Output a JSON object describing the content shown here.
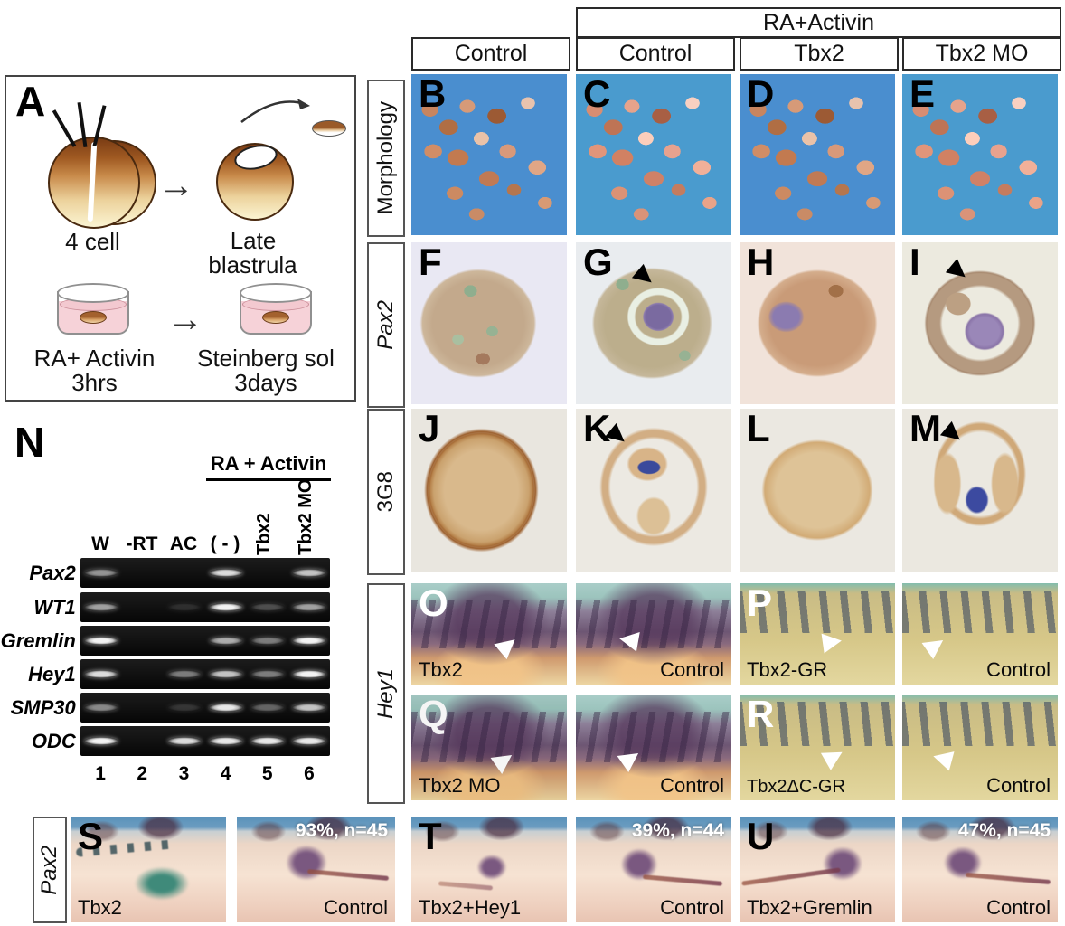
{
  "header": {
    "group": "RA+Activin",
    "cols": [
      "Control",
      "Control",
      "Tbx2",
      "Tbx2 MO"
    ]
  },
  "panelA": {
    "letter": "A",
    "cell4": "4 cell",
    "late1": "Late",
    "late2": "blastrula",
    "dish1a": "RA+ Activin",
    "dish1b": "3hrs",
    "dish2a": "Steinberg sol",
    "dish2b": "3days"
  },
  "grid": {
    "rows": [
      {
        "label": "Morphology",
        "panels": [
          "B",
          "C",
          "D",
          "E"
        ]
      },
      {
        "label": "Pax2",
        "panels": [
          "F",
          "G",
          "H",
          "I"
        ]
      },
      {
        "label": "3G8",
        "panels": [
          "J",
          "K",
          "L",
          "M"
        ]
      }
    ]
  },
  "hey1": {
    "label": "Hey1",
    "rows": [
      {
        "panels": [
          {
            "letter": "O",
            "caption": "Tbx2"
          },
          {
            "caption": "Control"
          },
          {
            "letter": "P",
            "caption": "Tbx2-GR"
          },
          {
            "caption": "Control"
          }
        ]
      },
      {
        "panels": [
          {
            "letter": "Q",
            "caption": "Tbx2 MO"
          },
          {
            "caption": "Control"
          },
          {
            "letter": "R",
            "caption": "Tbx2ΔC-GR"
          },
          {
            "caption": "Control"
          }
        ]
      }
    ]
  },
  "gel": {
    "letter": "N",
    "treatment": "RA + Activin",
    "lanes": [
      "W",
      "-RT",
      "AC",
      "( - )",
      "Tbx2",
      "Tbx2 MO"
    ],
    "numbers": [
      "1",
      "2",
      "3",
      "4",
      "5",
      "6"
    ],
    "rows": [
      {
        "gene": "Pax2",
        "bands": [
          0.55,
          0,
          0,
          0.85,
          0,
          0.75
        ]
      },
      {
        "gene": "WT1",
        "bands": [
          0.6,
          0,
          0.12,
          0.95,
          0.25,
          0.6
        ]
      },
      {
        "gene": "Gremlin",
        "bands": [
          0.95,
          0,
          0,
          0.65,
          0.45,
          0.95
        ]
      },
      {
        "gene": "Hey1",
        "bands": [
          0.85,
          0,
          0.45,
          0.75,
          0.45,
          0.95
        ]
      },
      {
        "gene": "SMP30",
        "bands": [
          0.5,
          0,
          0.15,
          0.9,
          0.35,
          0.75
        ]
      },
      {
        "gene": "ODC",
        "bands": [
          0.95,
          0,
          0.85,
          0.9,
          0.9,
          0.9
        ]
      }
    ]
  },
  "bottom": {
    "label": "Pax2",
    "groups": [
      {
        "letter": "S",
        "treat": "Tbx2",
        "ctrl": "Control",
        "stat": "93%, n=45"
      },
      {
        "letter": "T",
        "treat": "Tbx2+Hey1",
        "ctrl": "Control",
        "stat": "39%, n=44"
      },
      {
        "letter": "U",
        "treat": "Tbx2+Gremlin",
        "ctrl": "Control",
        "stat": "47%, n=45"
      }
    ]
  },
  "colors": {
    "morphology_bg": "#4a8ecf",
    "hey_teal": "#a9cdc8",
    "hey_khaki": "#d6c27e",
    "embryo_pink": "#f2d8c8",
    "stain_purple": "#7a5880",
    "stain_green": "#3f8a7a",
    "stain_blue": "#3a4a9a"
  }
}
